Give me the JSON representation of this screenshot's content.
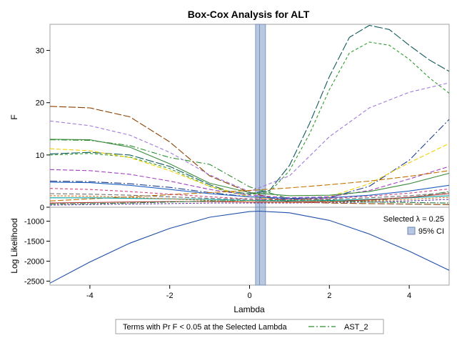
{
  "chart_data": {
    "type": "line",
    "title": "Box-Cox Analysis for ALT",
    "xlabel": "Lambda",
    "x_ticks": [
      "-4",
      "-2",
      "0",
      "2",
      "4"
    ],
    "xlim": [
      -5,
      5
    ],
    "selected_lambda": 0.25,
    "ci_band": [
      0.15,
      0.4
    ],
    "panels": [
      {
        "name": "F",
        "ylabel": "F",
        "ylim": [
          0,
          35
        ],
        "y_ticks": [
          "0",
          "10",
          "20",
          "30"
        ],
        "series": [
          {
            "name": "AST_2",
            "color": "#2f8f2f",
            "dash": "8,3,2,3",
            "x": [
              -5,
              -4,
              -3,
              -2,
              -1,
              0,
              1,
              2,
              3,
              4,
              5
            ],
            "y": [
              12.9,
              12.8,
              11.8,
              9.5,
              8.2,
              3.9,
              1.6,
              1.4,
              1.3,
              1.8,
              3.0
            ]
          },
          {
            "name": "",
            "color": "#8b4000",
            "dash": "10,3",
            "x": [
              -5,
              -4,
              -3,
              -2,
              -1,
              0,
              1,
              2,
              3,
              4,
              5
            ],
            "y": [
              19.3,
              19.0,
              17.3,
              12.5,
              6.0,
              2.8,
              1.0,
              0.8,
              0.7,
              0.6,
              0.5
            ]
          },
          {
            "name": "",
            "color": "#0f5a5a",
            "dash": "12,3",
            "x": [
              -5,
              -4,
              -3,
              -2,
              -1,
              -0.5,
              0,
              0.5,
              1,
              1.5,
              2,
              2.5,
              3,
              3.5,
              4,
              4.5,
              5
            ],
            "y": [
              10.2,
              10.5,
              10.0,
              7.8,
              4.3,
              3.0,
              2.6,
              3.2,
              8.0,
              16.0,
              25.0,
              32.5,
              34.8,
              34.0,
              31.0,
              28.2,
              26.0
            ]
          },
          {
            "name": "",
            "color": "#2e9a2e",
            "dash": "4,3",
            "x": [
              -5,
              -4,
              -3,
              -2,
              -1,
              -0.5,
              0,
              0.5,
              1,
              1.5,
              2,
              2.5,
              3,
              3.5,
              4,
              4.5,
              5
            ],
            "y": [
              10.0,
              10.3,
              9.6,
              7.4,
              4.0,
              2.8,
              2.4,
              2.9,
              7.0,
              14.0,
              22.5,
              29.5,
              31.6,
              31.0,
              28.3,
              24.8,
              21.8
            ]
          },
          {
            "name": "",
            "color": "#9f7ad9",
            "dash": "5,3",
            "x": [
              -5,
              -4,
              -3,
              -2,
              -1,
              0,
              1,
              2,
              3,
              4,
              5
            ],
            "y": [
              16.5,
              15.6,
              13.8,
              10.5,
              6.2,
              3.0,
              6.0,
              13.5,
              19.0,
              22.0,
              23.8
            ]
          },
          {
            "name": "",
            "color": "#1f3f8f",
            "dash": "10,3,2,3",
            "x": [
              -5,
              -4,
              -3,
              -2,
              -1,
              0,
              1,
              2,
              3,
              4,
              5
            ],
            "y": [
              5.0,
              4.9,
              4.5,
              3.8,
              2.8,
              2.0,
              1.5,
              1.8,
              4.0,
              9.0,
              16.8
            ]
          },
          {
            "name": "",
            "color": "#f0d000",
            "dash": "6,3",
            "x": [
              -5,
              -4,
              -3,
              -2,
              -1,
              0,
              1,
              2,
              3,
              4,
              5
            ],
            "y": [
              11.2,
              10.8,
              9.5,
              7.0,
              4.0,
              2.0,
              1.3,
              2.0,
              4.5,
              8.5,
              12.2
            ]
          },
          {
            "name": "",
            "color": "#a040c0",
            "dash": "6,3",
            "x": [
              -5,
              -4,
              -3,
              -2,
              -1,
              0,
              1,
              2,
              3,
              4,
              5
            ],
            "y": [
              7.2,
              7.0,
              6.3,
              5.0,
              3.4,
              2.3,
              1.8,
              2.0,
              3.2,
              5.4,
              7.8
            ]
          },
          {
            "name": "",
            "color": "#3a8a3a",
            "dash": "",
            "x": [
              -5,
              -4,
              -3,
              -2,
              -1,
              0,
              1,
              2,
              3,
              4,
              5
            ],
            "y": [
              13.0,
              12.9,
              11.5,
              8.3,
              4.6,
              2.8,
              2.2,
              2.3,
              3.0,
              4.5,
              6.5
            ]
          },
          {
            "name": "",
            "color": "#c07000",
            "dash": "8,3",
            "x": [
              -5,
              -4,
              -3,
              -2,
              -1,
              0,
              1,
              2,
              3,
              4,
              5
            ],
            "y": [
              1.2,
              1.6,
              2.0,
              2.4,
              2.8,
              3.2,
              3.7,
              4.3,
              5.0,
              5.9,
              7.0
            ]
          },
          {
            "name": "",
            "color": "#2060c0",
            "dash": "",
            "x": [
              -5,
              -4,
              -3,
              -2,
              -1,
              0,
              1,
              2,
              3,
              4,
              5
            ],
            "y": [
              4.8,
              4.7,
              4.2,
              3.4,
              2.6,
              2.0,
              1.7,
              1.8,
              2.3,
              3.1,
              4.2
            ]
          },
          {
            "name": "",
            "color": "#d04080",
            "dash": "4,3",
            "x": [
              -5,
              -4,
              -3,
              -2,
              -1,
              0,
              1,
              2,
              3,
              4,
              5
            ],
            "y": [
              3.6,
              3.4,
              3.0,
              2.5,
              2.0,
              1.6,
              1.5,
              1.7,
              2.1,
              2.7,
              3.5
            ]
          },
          {
            "name": "",
            "color": "#707070",
            "dash": "6,3",
            "x": [
              -5,
              -4,
              -3,
              -2,
              -1,
              0,
              1,
              2,
              3,
              4,
              5
            ],
            "y": [
              2.6,
              2.5,
              2.3,
              2.0,
              1.7,
              1.5,
              1.4,
              1.5,
              1.8,
              2.2,
              2.8
            ]
          },
          {
            "name": "",
            "color": "#00a0a0",
            "dash": "",
            "x": [
              -5,
              -4,
              -3,
              -2,
              -1,
              0,
              1,
              2,
              3,
              4,
              5
            ],
            "y": [
              1.8,
              1.8,
              1.7,
              1.6,
              1.5,
              1.3,
              1.2,
              1.3,
              1.5,
              1.8,
              2.2
            ]
          },
          {
            "name": "",
            "color": "#b03030",
            "dash": "",
            "x": [
              -5,
              -4,
              -3,
              -2,
              -1,
              0,
              1,
              2,
              3,
              4,
              5
            ],
            "y": [
              0.8,
              0.9,
              1.0,
              1.1,
              1.1,
              1.0,
              1.0,
              1.1,
              1.4,
              1.9,
              2.6
            ]
          },
          {
            "name": "",
            "color": "#6a3fb0",
            "dash": "3,2",
            "x": [
              -5,
              -4,
              -3,
              -2,
              -1,
              0,
              1,
              2,
              3,
              4,
              5
            ],
            "y": [
              0.4,
              0.5,
              0.6,
              0.7,
              0.8,
              0.8,
              0.8,
              0.9,
              1.0,
              1.2,
              1.5
            ]
          },
          {
            "name": "",
            "color": "#e07020",
            "dash": "3,2",
            "x": [
              -5,
              -4,
              -3,
              -2,
              -1,
              0,
              1,
              2,
              3,
              4,
              5
            ],
            "y": [
              2.2,
              2.1,
              1.9,
              1.6,
              1.3,
              1.0,
              0.9,
              1.0,
              1.2,
              1.5,
              1.9
            ]
          },
          {
            "name": "",
            "color": "#208040",
            "dash": "8,2,2,2",
            "x": [
              -5,
              -4,
              -3,
              -2,
              -1,
              0,
              1,
              2,
              3,
              4,
              5
            ],
            "y": [
              0.6,
              0.7,
              0.8,
              1.0,
              1.2,
              1.3,
              1.3,
              1.2,
              1.0,
              0.9,
              0.8
            ]
          }
        ]
      },
      {
        "name": "Log Likelihood",
        "ylabel": "Log Likelihood",
        "ylim": [
          -2600,
          -650
        ],
        "y_ticks": [
          "-2500",
          "-2000",
          "-1500",
          "-1000"
        ],
        "series": [
          {
            "name": "",
            "color": "#1f4fa8",
            "dash": "",
            "x": [
              -5,
              -4,
              -3,
              -2,
              -1,
              0,
              0.25,
              1,
              2,
              3,
              4,
              5
            ],
            "y": [
              -2550,
              -2020,
              -1550,
              -1180,
              -900,
              -760,
              -748,
              -790,
              -980,
              -1320,
              -1750,
              -2230
            ]
          }
        ]
      }
    ],
    "inset_legend": {
      "selected_text": "Selected λ = 0.25",
      "ci_label": "95% CI"
    },
    "bottom_legend": {
      "caption": "Terms with Pr F < 0.05 at the Selected Lambda",
      "entry": "AST_2"
    },
    "colors": {
      "ci_fill": "#b8c8e0",
      "ci_stroke": "#6d86b0",
      "frame": "#a0a0a0"
    }
  }
}
